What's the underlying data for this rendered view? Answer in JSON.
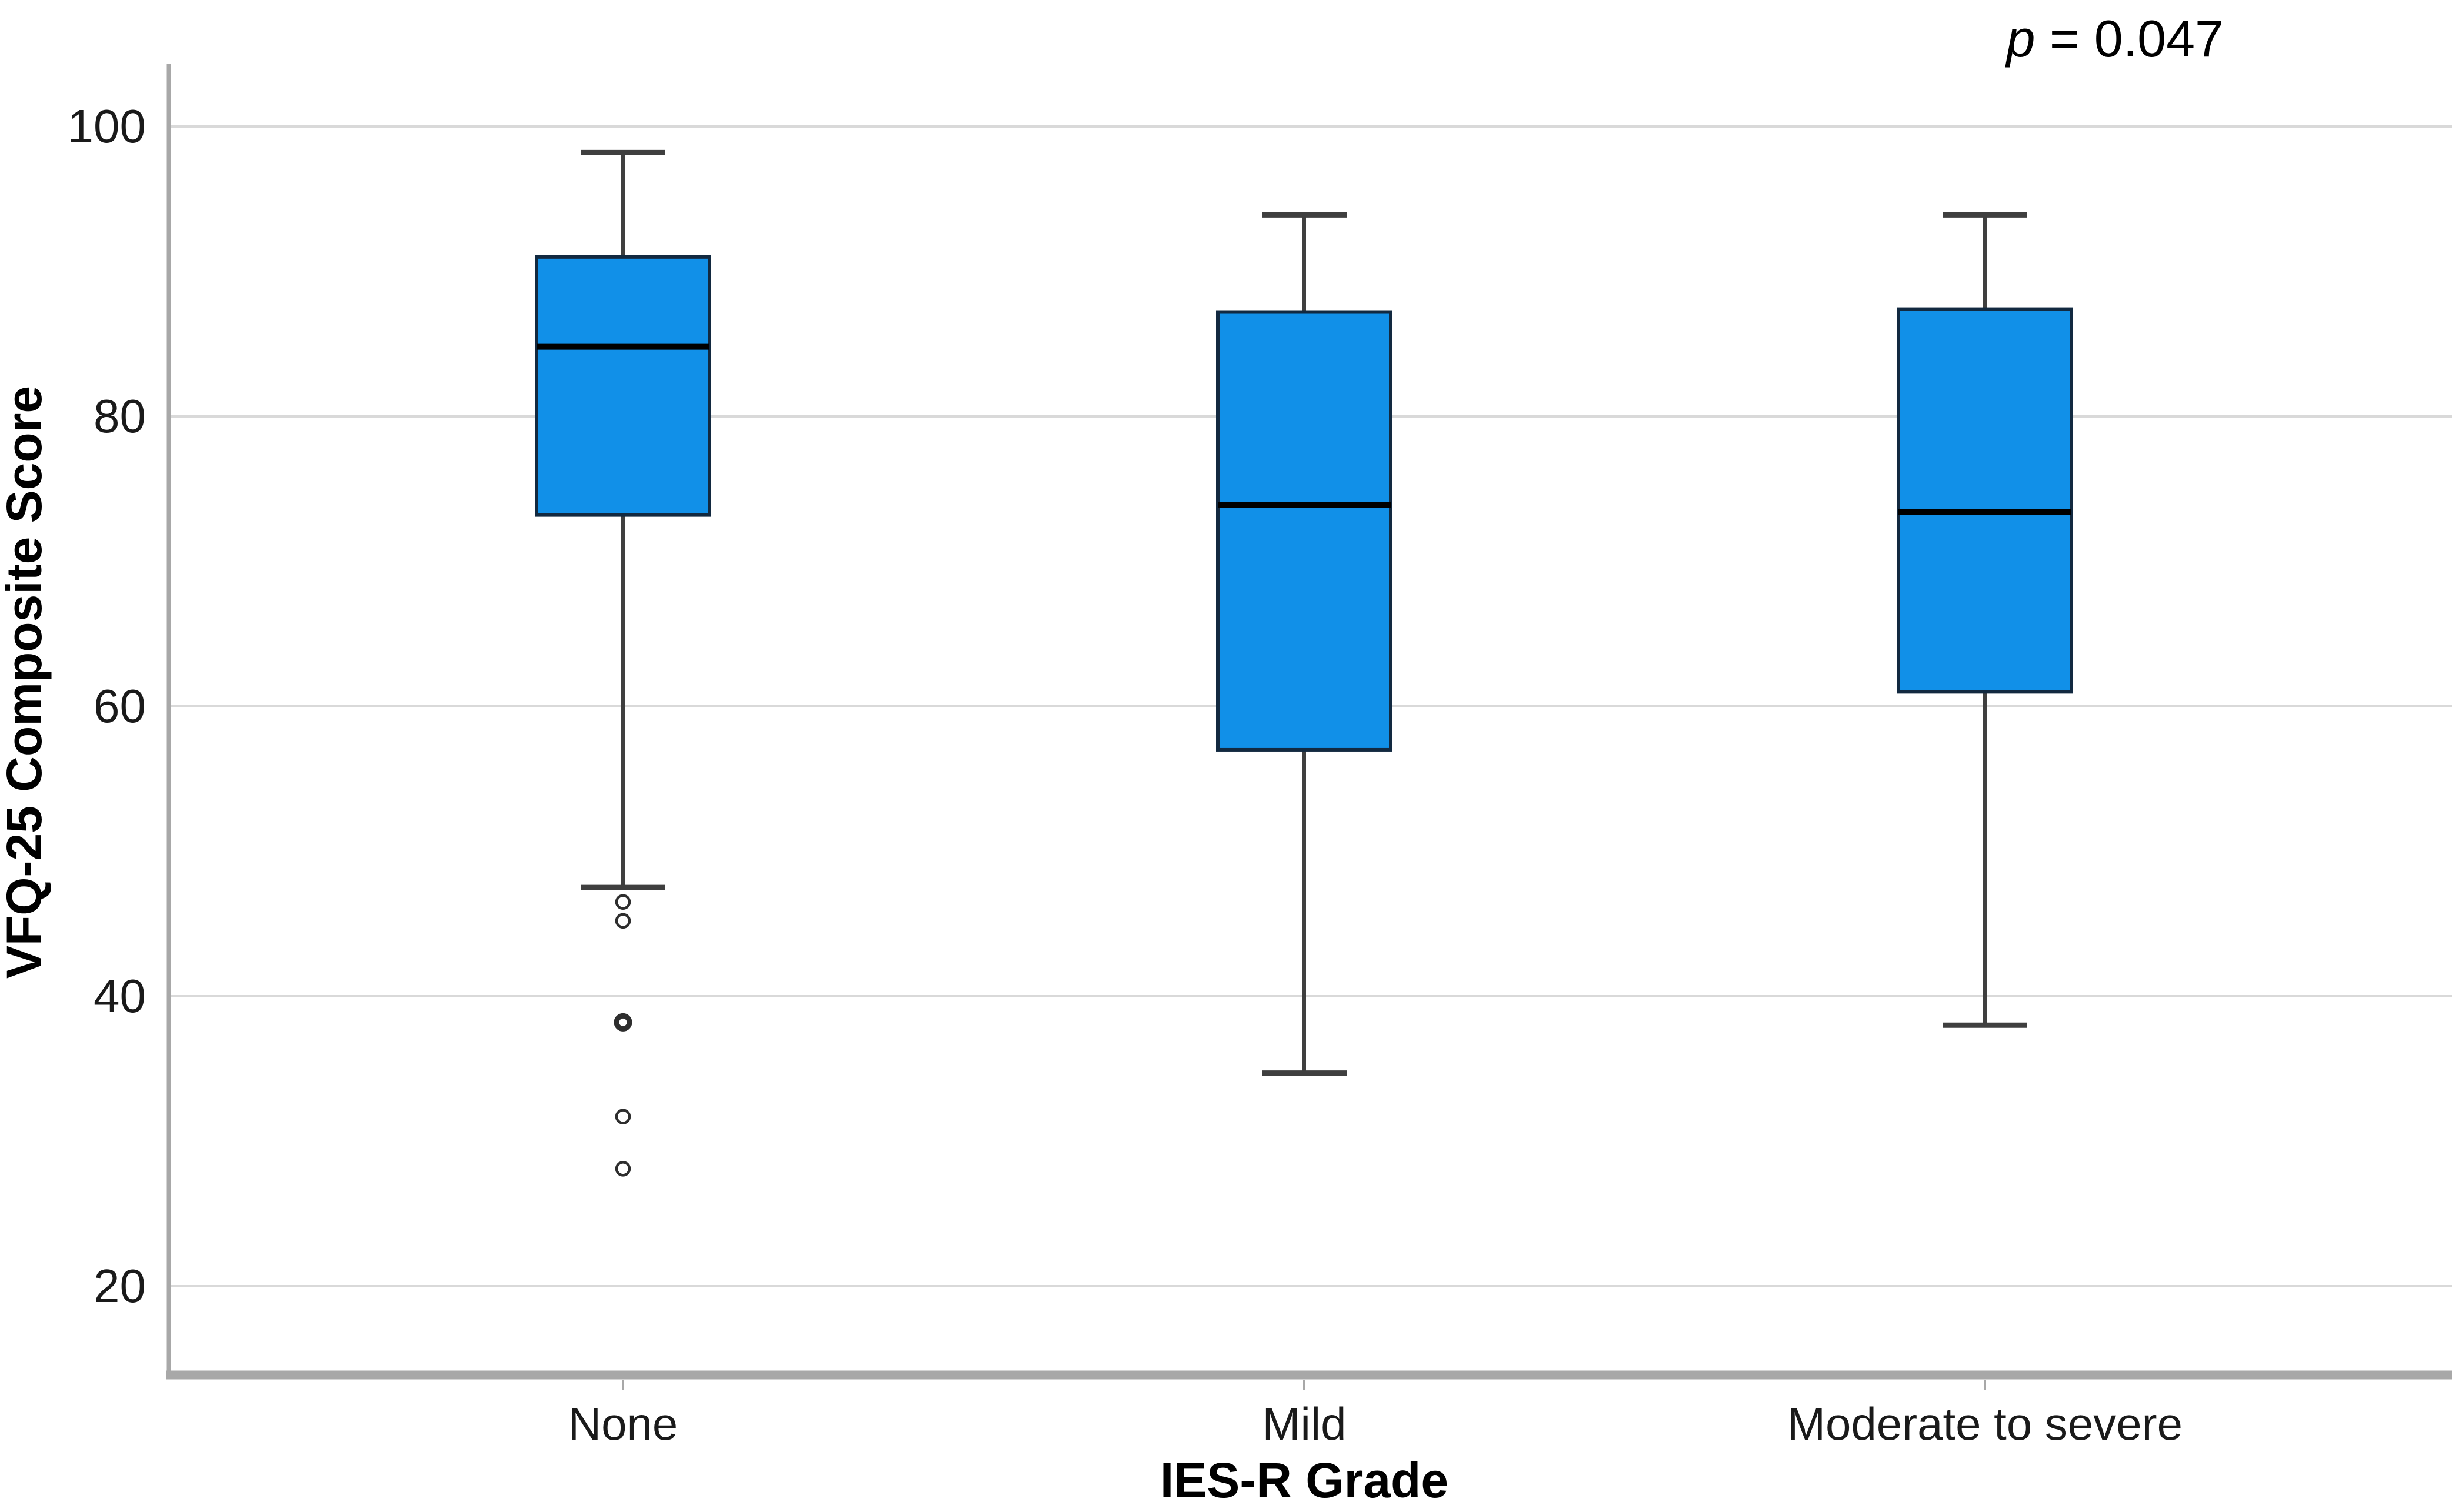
{
  "annotation": {
    "p_symbol": "p",
    "p_rest": " = 0.047",
    "text": "p = 0.047"
  },
  "y_axis": {
    "title": "VFQ-25 Composite Score",
    "tick_values": [
      100,
      80,
      60,
      40,
      20
    ]
  },
  "x_axis": {
    "title": "IES-R Grade"
  },
  "chart_data": {
    "type": "boxplot",
    "title": "",
    "xlabel": "IES-R Grade",
    "ylabel": "VFQ-25 Composite Score",
    "ylim": [
      14,
      104.5
    ],
    "yticks": [
      20,
      40,
      60,
      80,
      100
    ],
    "grid": "horizontal-gridlines-on",
    "legend": "none",
    "annotation": "p = 0.047",
    "categories": [
      "None",
      "Mild",
      "Moderate to severe"
    ],
    "series": [
      {
        "category": "None",
        "whisker_low": 47.5,
        "q1": 73.2,
        "median": 84.8,
        "q3": 91.0,
        "whisker_high": 98.2,
        "outliers": [
          46.5,
          45.2,
          38.2,
          38.2,
          31.7,
          28.1
        ]
      },
      {
        "category": "Mild",
        "whisker_low": 34.7,
        "q1": 57.0,
        "median": 73.9,
        "q3": 87.2,
        "whisker_high": 93.9,
        "outliers": []
      },
      {
        "category": "Moderate to severe",
        "whisker_low": 38.0,
        "q1": 61.0,
        "median": 73.4,
        "q3": 87.4,
        "whisker_high": 93.9,
        "outliers": []
      }
    ]
  },
  "colors": {
    "background": "#ffffff",
    "box_fill": "#1190e8",
    "box_border": "#122940",
    "median_line": "#000000",
    "whisker": "#3f3f3f",
    "outlier_ring": "#2e2e2e",
    "gridline": "#d9d9d9",
    "axis_line": "#a8a8a8",
    "tick_text": "#1a1a1a",
    "label_text": "#000000"
  }
}
